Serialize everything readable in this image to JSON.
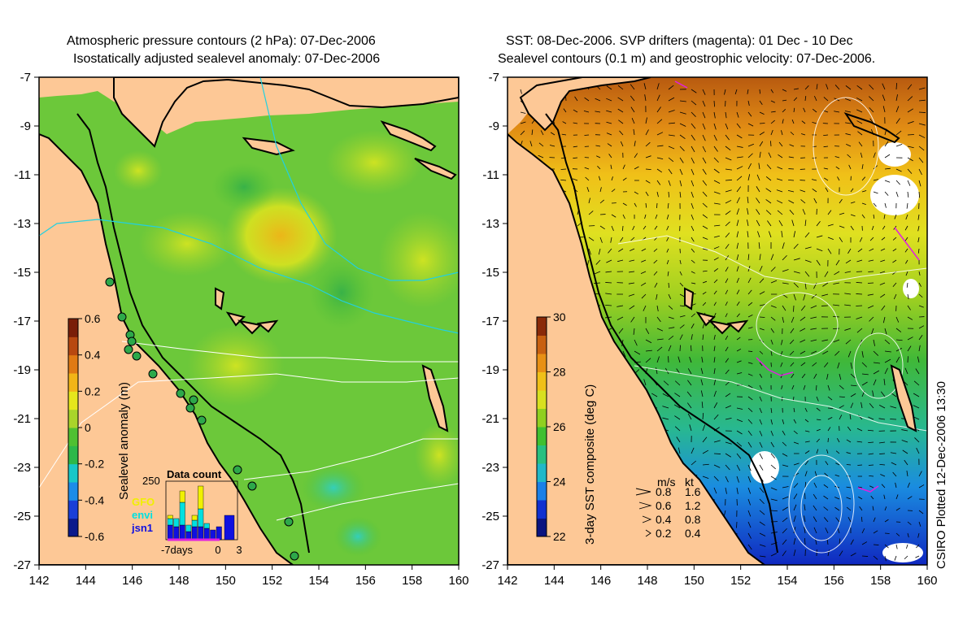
{
  "left_panel": {
    "title_line1": "Atmospheric pressure contours (2 hPa): 07-Dec-2006",
    "title_line2": "Isostatically adjusted sealevel anomaly: 07-Dec-2006",
    "colorbar": {
      "label": "Sealevel anomaly (m)",
      "ticks": [
        "0.6",
        "0.4",
        "0.2",
        "0",
        "-0.2",
        "-0.4",
        "-0.6"
      ],
      "colors": [
        "#0b1a8c",
        "#1a3fd8",
        "#1c8ce8",
        "#19c7c7",
        "#2db84a",
        "#4fc032",
        "#a9d42a",
        "#e6e61c",
        "#f2b517",
        "#e07a14",
        "#b84810",
        "#7a1e08"
      ]
    },
    "inset": {
      "title": "Data count",
      "ymax_label": "250",
      "legend": [
        {
          "name": "GFO",
          "color": "#f0f000"
        },
        {
          "name": "envi",
          "color": "#00e0e0"
        },
        {
          "name": "jsn1",
          "color": "#1010e0"
        }
      ],
      "xlabels": [
        "-7days",
        "0",
        "3"
      ]
    }
  },
  "right_panel": {
    "title_line1": "SST: 08-Dec-2006. SVP drifters (magenta): 01 Dec - 10 Dec",
    "title_line2": "Sealevel contours (0.1 m) and geostrophic velocity: 07-Dec-2006.",
    "colorbar": {
      "label": "3-day SST composite (deg C)",
      "ticks": [
        "30",
        "28",
        "26",
        "24",
        "22"
      ],
      "colors": [
        "#0a1480",
        "#1030d0",
        "#1a80e8",
        "#20b8c8",
        "#28c080",
        "#40c030",
        "#90d020",
        "#d8e020",
        "#f0c018",
        "#e89014",
        "#c86010",
        "#8a2a08"
      ]
    },
    "velocity_legend": {
      "header_ms": "m/s",
      "header_kt": "kt",
      "rows": [
        {
          "ms": "0.8",
          "kt": "1.6"
        },
        {
          "ms": "0.6",
          "kt": "1.2"
        },
        {
          "ms": "0.4",
          "kt": "0.8"
        },
        {
          "ms": "0.2",
          "kt": "0.4"
        }
      ]
    },
    "credit": "CSIRO Plotted 12-Dec-2006 13:30"
  },
  "axes": {
    "x_ticks": [
      "142",
      "144",
      "146",
      "148",
      "150",
      "152",
      "154",
      "156",
      "158",
      "160"
    ],
    "y_ticks": [
      "-7",
      "-9",
      "-11",
      "-13",
      "-15",
      "-17",
      "-19",
      "-21",
      "-23",
      "-25",
      "-27"
    ]
  },
  "colors": {
    "land": "#fdc896",
    "coast": "#000000"
  }
}
